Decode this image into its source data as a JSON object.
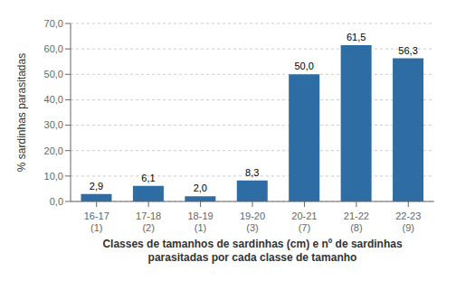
{
  "chart_data": {
    "type": "bar",
    "categories": [
      "16-17\n(1)",
      "17-18\n(2)",
      "18-19\n(1)",
      "19-20\n(3)",
      "20-21\n(7)",
      "21-22\n(8)",
      "22-23\n(9)"
    ],
    "values": [
      2.9,
      6.1,
      2.0,
      8.3,
      50.0,
      61.5,
      56.3
    ],
    "value_labels": [
      "2,9",
      "6,1",
      "2,0",
      "8,3",
      "50,0",
      "61,5",
      "56,3"
    ],
    "color": "#2E6DA4",
    "ylabel": "% sardinhas parasitadas",
    "xlabel": "Classes de tamanhos de sardinhas (cm) e nº de sardinhas\nparasitadas por cada classe de tamanho",
    "ylim": [
      0,
      70
    ],
    "yticks": [
      {
        "value": 0,
        "label": "0,0"
      },
      {
        "value": 10,
        "label": "10,0"
      },
      {
        "value": 20,
        "label": "20,0"
      },
      {
        "value": 30,
        "label": "30,0"
      },
      {
        "value": 40,
        "label": "40,0"
      },
      {
        "value": 50,
        "label": "50,0"
      },
      {
        "value": 60,
        "label": "60,0"
      },
      {
        "value": 70,
        "label": "70,0"
      }
    ],
    "grid": true,
    "data_labels": true
  }
}
